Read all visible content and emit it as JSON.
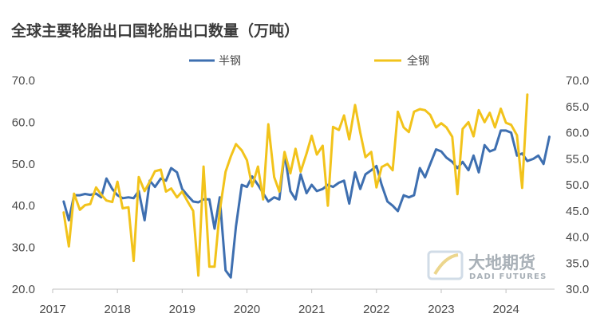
{
  "chart_data": {
    "type": "line",
    "title": "全球主要轮胎出口国轮胎出口数量（万吨）",
    "legend_position": "top-center",
    "grid": false,
    "x_ticks": [
      "2017",
      "2018",
      "2019",
      "2020",
      "2021",
      "2022",
      "2023",
      "2024"
    ],
    "y_left": {
      "ticks": [
        "70.0",
        "60.0",
        "50.0",
        "40.0",
        "30.0",
        "20.0"
      ],
      "range": [
        20,
        70
      ]
    },
    "y_right": {
      "ticks": [
        "70.0",
        "65.0",
        "60.0",
        "55.0",
        "50.0",
        "45.0",
        "40.0",
        "35.0",
        "30.0"
      ],
      "range": [
        30,
        70
      ]
    },
    "x_range": [
      2017,
      2024.75
    ],
    "series": [
      {
        "name": "半钢",
        "axis": "left",
        "color": "#3e6fb0",
        "points": [
          [
            2017.17,
            41.0
          ],
          [
            2017.25,
            36.5
          ],
          [
            2017.33,
            42.5
          ],
          [
            2017.42,
            42.5
          ],
          [
            2017.5,
            42.8
          ],
          [
            2017.58,
            42.6
          ],
          [
            2017.67,
            42.9
          ],
          [
            2017.75,
            42.0
          ],
          [
            2017.83,
            46.5
          ],
          [
            2017.92,
            44.0
          ],
          [
            2018.0,
            42.5
          ],
          [
            2018.08,
            41.8
          ],
          [
            2018.17,
            42.0
          ],
          [
            2018.25,
            41.8
          ],
          [
            2018.33,
            43.5
          ],
          [
            2018.42,
            36.5
          ],
          [
            2018.5,
            46.0
          ],
          [
            2018.58,
            44.5
          ],
          [
            2018.67,
            46.5
          ],
          [
            2018.75,
            46.0
          ],
          [
            2018.83,
            49.0
          ],
          [
            2018.92,
            48.0
          ],
          [
            2019.0,
            44.0
          ],
          [
            2019.08,
            42.5
          ],
          [
            2019.17,
            41.0
          ],
          [
            2019.25,
            40.8
          ],
          [
            2019.33,
            41.5
          ],
          [
            2019.42,
            41.5
          ],
          [
            2019.5,
            34.5
          ],
          [
            2019.58,
            42.0
          ],
          [
            2019.67,
            24.5
          ],
          [
            2019.75,
            22.8
          ],
          [
            2019.83,
            35.0
          ],
          [
            2019.92,
            45.0
          ],
          [
            2020.0,
            44.5
          ],
          [
            2020.08,
            47.0
          ],
          [
            2020.17,
            45.0
          ],
          [
            2020.25,
            43.0
          ],
          [
            2020.33,
            41.0
          ],
          [
            2020.42,
            42.0
          ],
          [
            2020.5,
            41.5
          ],
          [
            2020.58,
            52.5
          ],
          [
            2020.67,
            43.5
          ],
          [
            2020.75,
            41.5
          ],
          [
            2020.83,
            47.5
          ],
          [
            2020.92,
            43.0
          ],
          [
            2021.0,
            45.0
          ],
          [
            2021.08,
            43.5
          ],
          [
            2021.17,
            44.0
          ],
          [
            2021.25,
            45.0
          ],
          [
            2021.33,
            44.5
          ],
          [
            2021.42,
            45.5
          ],
          [
            2021.5,
            46.0
          ],
          [
            2021.58,
            40.5
          ],
          [
            2021.67,
            48.0
          ],
          [
            2021.75,
            44.0
          ],
          [
            2021.83,
            47.5
          ],
          [
            2021.92,
            48.5
          ],
          [
            2022.0,
            49.5
          ],
          [
            2022.08,
            45.0
          ],
          [
            2022.17,
            41.0
          ],
          [
            2022.25,
            40.0
          ],
          [
            2022.33,
            38.7
          ],
          [
            2022.42,
            42.5
          ],
          [
            2022.5,
            42.0
          ],
          [
            2022.58,
            42.5
          ],
          [
            2022.67,
            49.0
          ],
          [
            2022.75,
            46.8
          ],
          [
            2022.83,
            50.0
          ],
          [
            2022.92,
            53.5
          ],
          [
            2023.0,
            53.0
          ],
          [
            2023.08,
            51.5
          ],
          [
            2023.17,
            50.5
          ],
          [
            2023.25,
            49.0
          ],
          [
            2023.33,
            50.5
          ],
          [
            2023.42,
            48.5
          ],
          [
            2023.5,
            52.0
          ],
          [
            2023.58,
            48.0
          ],
          [
            2023.67,
            54.5
          ],
          [
            2023.75,
            53.0
          ],
          [
            2023.83,
            53.5
          ],
          [
            2023.92,
            58.0
          ],
          [
            2024.0,
            58.0
          ],
          [
            2024.08,
            57.5
          ],
          [
            2024.17,
            52.0
          ],
          [
            2024.25,
            52.5
          ],
          [
            2024.33,
            50.7
          ],
          [
            2024.42,
            51.2
          ],
          [
            2024.5,
            52.0
          ],
          [
            2024.58,
            50.0
          ],
          [
            2024.67,
            56.5
          ]
        ]
      },
      {
        "name": "全钢",
        "axis": "right",
        "color": "#f2c31b",
        "points": [
          [
            2017.17,
            44.7
          ],
          [
            2017.25,
            38.2
          ],
          [
            2017.33,
            48.3
          ],
          [
            2017.42,
            45.2
          ],
          [
            2017.5,
            46.1
          ],
          [
            2017.58,
            46.3
          ],
          [
            2017.67,
            49.5
          ],
          [
            2017.75,
            48.1
          ],
          [
            2017.83,
            47.0
          ],
          [
            2017.92,
            46.7
          ],
          [
            2018.0,
            50.6
          ],
          [
            2018.08,
            45.5
          ],
          [
            2018.17,
            45.7
          ],
          [
            2018.25,
            35.4
          ],
          [
            2018.33,
            51.5
          ],
          [
            2018.42,
            48.8
          ],
          [
            2018.5,
            50.6
          ],
          [
            2018.58,
            52.6
          ],
          [
            2018.67,
            52.9
          ],
          [
            2018.75,
            48.7
          ],
          [
            2018.83,
            49.3
          ],
          [
            2018.92,
            47.6
          ],
          [
            2019.0,
            48.7
          ],
          [
            2019.08,
            46.9
          ],
          [
            2019.17,
            45.0
          ],
          [
            2019.25,
            32.6
          ],
          [
            2019.33,
            53.5
          ],
          [
            2019.42,
            34.3
          ],
          [
            2019.5,
            34.3
          ],
          [
            2019.58,
            45.0
          ],
          [
            2019.67,
            52.5
          ],
          [
            2019.75,
            55.4
          ],
          [
            2019.83,
            57.8
          ],
          [
            2019.92,
            56.6
          ],
          [
            2020.0,
            54.7
          ],
          [
            2020.08,
            49.7
          ],
          [
            2020.17,
            53.5
          ],
          [
            2020.25,
            47.2
          ],
          [
            2020.33,
            61.6
          ],
          [
            2020.42,
            51.5
          ],
          [
            2020.5,
            48.7
          ],
          [
            2020.58,
            56.3
          ],
          [
            2020.67,
            52.2
          ],
          [
            2020.75,
            56.9
          ],
          [
            2020.83,
            52.5
          ],
          [
            2020.92,
            56.0
          ],
          [
            2021.0,
            59.4
          ],
          [
            2021.08,
            55.8
          ],
          [
            2021.17,
            57.5
          ],
          [
            2021.25,
            46.0
          ],
          [
            2021.33,
            61.1
          ],
          [
            2021.42,
            60.5
          ],
          [
            2021.5,
            63.3
          ],
          [
            2021.58,
            58.7
          ],
          [
            2021.67,
            65.3
          ],
          [
            2021.75,
            60.0
          ],
          [
            2021.83,
            55.3
          ],
          [
            2021.92,
            56.3
          ],
          [
            2022.0,
            49.5
          ],
          [
            2022.08,
            53.4
          ],
          [
            2022.17,
            54.0
          ],
          [
            2022.25,
            52.8
          ],
          [
            2022.33,
            64.0
          ],
          [
            2022.42,
            61.0
          ],
          [
            2022.5,
            60.1
          ],
          [
            2022.58,
            64.0
          ],
          [
            2022.67,
            64.5
          ],
          [
            2022.75,
            64.3
          ],
          [
            2022.83,
            63.4
          ],
          [
            2022.92,
            61.0
          ],
          [
            2023.0,
            61.8
          ],
          [
            2023.08,
            61.0
          ],
          [
            2023.17,
            59.2
          ],
          [
            2023.25,
            48.2
          ],
          [
            2023.33,
            60.7
          ],
          [
            2023.42,
            62.0
          ],
          [
            2023.5,
            59.3
          ],
          [
            2023.58,
            64.3
          ],
          [
            2023.67,
            62.0
          ],
          [
            2023.75,
            63.8
          ],
          [
            2023.83,
            61.0
          ],
          [
            2023.92,
            64.6
          ],
          [
            2024.0,
            61.9
          ],
          [
            2024.08,
            61.5
          ],
          [
            2024.17,
            59.5
          ],
          [
            2024.25,
            49.4
          ],
          [
            2024.33,
            67.3
          ]
        ]
      }
    ]
  },
  "watermark": {
    "name_cn": "大地期货",
    "name_en": "DADI FUTURES"
  }
}
